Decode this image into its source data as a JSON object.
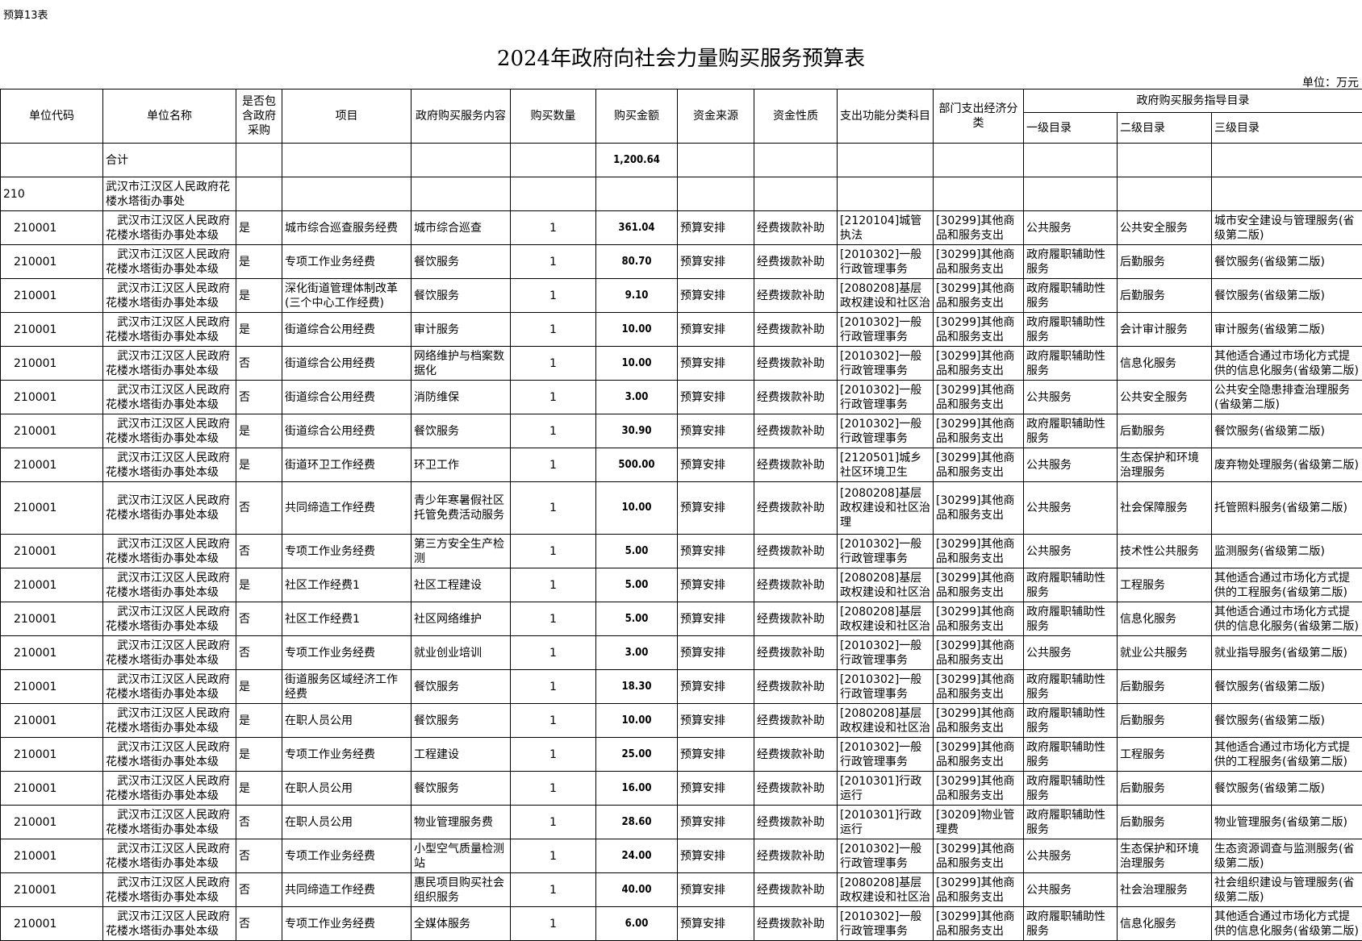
{
  "sheet_label": "预算13表",
  "title": "2024年政府向社会力量购买服务预算表",
  "unit": "单位：万元",
  "headers": {
    "code": "单位代码",
    "name": "单位名称",
    "gov_proc": "是否包含政府采购",
    "project": "项目",
    "content": "政府购买服务内容",
    "qty": "购买数量",
    "amount": "购买金额",
    "fund_source": "资金来源",
    "fund_nature": "资金性质",
    "func_class": "支出功能分类科目",
    "econ_class": "部门支出经济分类",
    "catalog": "政府购买服务指导目录",
    "level1": "一级目录",
    "level2": "二级目录",
    "level3": "三级目录"
  },
  "total_row": {
    "name": "合计",
    "amount": "1,200.64"
  },
  "unit_row": {
    "code": "210",
    "name": "武汉市江汉区人民政府花楼水塔街办事处"
  },
  "rows": [
    {
      "code": "210001",
      "name": "武汉市江汉区人民政府花楼水塔街办事处本级",
      "gov": "是",
      "project": "城市综合巡查服务经费",
      "content": "城市综合巡查",
      "qty": "1",
      "amount": "361.04",
      "source": "预算安排",
      "nature": "经费拨款补助",
      "func": "[2120104]城管执法",
      "econ": "[30299]其他商品和服务支出",
      "l1": "公共服务",
      "l2": "公共安全服务",
      "l3": "城市安全建设与管理服务(省级第二版)"
    },
    {
      "code": "210001",
      "name": "武汉市江汉区人民政府花楼水塔街办事处本级",
      "gov": "是",
      "project": "专项工作业务经费",
      "content": "餐饮服务",
      "qty": "1",
      "amount": "80.70",
      "source": "预算安排",
      "nature": "经费拨款补助",
      "func": "[2010302]一般行政管理事务",
      "econ": "[30299]其他商品和服务支出",
      "l1": "政府履职辅助性服务",
      "l2": "后勤服务",
      "l3": "餐饮服务(省级第二版)"
    },
    {
      "code": "210001",
      "name": "武汉市江汉区人民政府花楼水塔街办事处本级",
      "gov": "是",
      "project": "深化街道管理体制改革(三个中心工作经费)",
      "content": "餐饮服务",
      "qty": "1",
      "amount": "9.10",
      "source": "预算安排",
      "nature": "经费拨款补助",
      "func": "[2080208]基层政权建设和社区治理",
      "econ": "[30299]其他商品和服务支出",
      "l1": "政府履职辅助性服务",
      "l2": "后勤服务",
      "l3": "餐饮服务(省级第二版)"
    },
    {
      "code": "210001",
      "name": "武汉市江汉区人民政府花楼水塔街办事处本级",
      "gov": "是",
      "project": "街道综合公用经费",
      "content": "审计服务",
      "qty": "1",
      "amount": "10.00",
      "source": "预算安排",
      "nature": "经费拨款补助",
      "func": "[2010302]一般行政管理事务",
      "econ": "[30299]其他商品和服务支出",
      "l1": "政府履职辅助性服务",
      "l2": "会计审计服务",
      "l3": "审计服务(省级第二版)"
    },
    {
      "code": "210001",
      "name": "武汉市江汉区人民政府花楼水塔街办事处本级",
      "gov": "否",
      "project": "街道综合公用经费",
      "content": "网络维护与档案数据化",
      "qty": "1",
      "amount": "10.00",
      "source": "预算安排",
      "nature": "经费拨款补助",
      "func": "[2010302]一般行政管理事务",
      "econ": "[30299]其他商品和服务支出",
      "l1": "政府履职辅助性服务",
      "l2": "信息化服务",
      "l3": "其他适合通过市场化方式提供的信息化服务(省级第二版)"
    },
    {
      "code": "210001",
      "name": "武汉市江汉区人民政府花楼水塔街办事处本级",
      "gov": "否",
      "project": "街道综合公用经费",
      "content": "消防维保",
      "qty": "1",
      "amount": "3.00",
      "source": "预算安排",
      "nature": "经费拨款补助",
      "func": "[2010302]一般行政管理事务",
      "econ": "[30299]其他商品和服务支出",
      "l1": "公共服务",
      "l2": "公共安全服务",
      "l3": "公共安全隐患排查治理服务(省级第二版)"
    },
    {
      "code": "210001",
      "name": "武汉市江汉区人民政府花楼水塔街办事处本级",
      "gov": "是",
      "project": "街道综合公用经费",
      "content": "餐饮服务",
      "qty": "1",
      "amount": "30.90",
      "source": "预算安排",
      "nature": "经费拨款补助",
      "func": "[2010302]一般行政管理事务",
      "econ": "[30299]其他商品和服务支出",
      "l1": "政府履职辅助性服务",
      "l2": "后勤服务",
      "l3": "餐饮服务(省级第二版)"
    },
    {
      "code": "210001",
      "name": "武汉市江汉区人民政府花楼水塔街办事处本级",
      "gov": "是",
      "project": "街道环卫工作经费",
      "content": "环卫工作",
      "qty": "1",
      "amount": "500.00",
      "source": "预算安排",
      "nature": "经费拨款补助",
      "func": "[2120501]城乡社区环境卫生",
      "econ": "[30299]其他商品和服务支出",
      "l1": "公共服务",
      "l2": "生态保护和环境治理服务",
      "l3": "废弃物处理服务(省级第二版)"
    },
    {
      "code": "210001",
      "name": "武汉市江汉区人民政府花楼水塔街办事处本级",
      "gov": "否",
      "project": "共同缔造工作经费",
      "content": "青少年寒暑假社区托管免费活动服务",
      "qty": "1",
      "amount": "10.00",
      "source": "预算安排",
      "nature": "经费拨款补助",
      "func": "[2080208]基层政权建设和社区治理",
      "econ": "[30299]其他商品和服务支出",
      "l1": "公共服务",
      "l2": "社会保障服务",
      "l3": "托管照料服务(省级第二版)",
      "tall": true
    },
    {
      "code": "210001",
      "name": "武汉市江汉区人民政府花楼水塔街办事处本级",
      "gov": "否",
      "project": "专项工作业务经费",
      "content": "第三方安全生产检测",
      "qty": "1",
      "amount": "5.00",
      "source": "预算安排",
      "nature": "经费拨款补助",
      "func": "[2010302]一般行政管理事务",
      "econ": "[30299]其他商品和服务支出",
      "l1": "公共服务",
      "l2": "技术性公共服务",
      "l3": "监测服务(省级第二版)"
    },
    {
      "code": "210001",
      "name": "武汉市江汉区人民政府花楼水塔街办事处本级",
      "gov": "是",
      "project": "社区工作经费1",
      "content": "社区工程建设",
      "qty": "1",
      "amount": "5.00",
      "source": "预算安排",
      "nature": "经费拨款补助",
      "func": "[2080208]基层政权建设和社区治理",
      "econ": "[30299]其他商品和服务支出",
      "l1": "政府履职辅助性服务",
      "l2": "工程服务",
      "l3": "其他适合通过市场化方式提供的工程服务(省级第二版)"
    },
    {
      "code": "210001",
      "name": "武汉市江汉区人民政府花楼水塔街办事处本级",
      "gov": "否",
      "project": "社区工作经费1",
      "content": "社区网络维护",
      "qty": "1",
      "amount": "5.00",
      "source": "预算安排",
      "nature": "经费拨款补助",
      "func": "[2080208]基层政权建设和社区治理",
      "econ": "[30299]其他商品和服务支出",
      "l1": "政府履职辅助性服务",
      "l2": "信息化服务",
      "l3": "其他适合通过市场化方式提供的信息化服务(省级第二版)"
    },
    {
      "code": "210001",
      "name": "武汉市江汉区人民政府花楼水塔街办事处本级",
      "gov": "否",
      "project": "专项工作业务经费",
      "content": "就业创业培训",
      "qty": "1",
      "amount": "3.00",
      "source": "预算安排",
      "nature": "经费拨款补助",
      "func": "[2010302]一般行政管理事务",
      "econ": "[30299]其他商品和服务支出",
      "l1": "公共服务",
      "l2": "就业公共服务",
      "l3": "就业指导服务(省级第二版)"
    },
    {
      "code": "210001",
      "name": "武汉市江汉区人民政府花楼水塔街办事处本级",
      "gov": "是",
      "project": "街道服务区域经济工作经费",
      "content": "餐饮服务",
      "qty": "1",
      "amount": "18.30",
      "source": "预算安排",
      "nature": "经费拨款补助",
      "func": "[2010302]一般行政管理事务",
      "econ": "[30299]其他商品和服务支出",
      "l1": "政府履职辅助性服务",
      "l2": "后勤服务",
      "l3": "餐饮服务(省级第二版)"
    },
    {
      "code": "210001",
      "name": "武汉市江汉区人民政府花楼水塔街办事处本级",
      "gov": "是",
      "project": "在职人员公用",
      "content": "餐饮服务",
      "qty": "1",
      "amount": "10.00",
      "source": "预算安排",
      "nature": "经费拨款补助",
      "func": "[2080208]基层政权建设和社区治理",
      "econ": "[30299]其他商品和服务支出",
      "l1": "政府履职辅助性服务",
      "l2": "后勤服务",
      "l3": "餐饮服务(省级第二版)"
    },
    {
      "code": "210001",
      "name": "武汉市江汉区人民政府花楼水塔街办事处本级",
      "gov": "是",
      "project": "专项工作业务经费",
      "content": "工程建设",
      "qty": "1",
      "amount": "25.00",
      "source": "预算安排",
      "nature": "经费拨款补助",
      "func": "[2010302]一般行政管理事务",
      "econ": "[30299]其他商品和服务支出",
      "l1": "政府履职辅助性服务",
      "l2": "工程服务",
      "l3": "其他适合通过市场化方式提供的工程服务(省级第二版)"
    },
    {
      "code": "210001",
      "name": "武汉市江汉区人民政府花楼水塔街办事处本级",
      "gov": "是",
      "project": "在职人员公用",
      "content": "餐饮服务",
      "qty": "1",
      "amount": "16.00",
      "source": "预算安排",
      "nature": "经费拨款补助",
      "func": "[2010301]行政运行",
      "econ": "[30299]其他商品和服务支出",
      "l1": "政府履职辅助性服务",
      "l2": "后勤服务",
      "l3": "餐饮服务(省级第二版)"
    },
    {
      "code": "210001",
      "name": "武汉市江汉区人民政府花楼水塔街办事处本级",
      "gov": "否",
      "project": "在职人员公用",
      "content": "物业管理服务费",
      "qty": "1",
      "amount": "28.60",
      "source": "预算安排",
      "nature": "经费拨款补助",
      "func": "[2010301]行政运行",
      "econ": "[30209]物业管理费",
      "l1": "政府履职辅助性服务",
      "l2": "后勤服务",
      "l3": "物业管理服务(省级第二版)"
    },
    {
      "code": "210001",
      "name": "武汉市江汉区人民政府花楼水塔街办事处本级",
      "gov": "否",
      "project": "专项工作业务经费",
      "content": "小型空气质量检测站",
      "qty": "1",
      "amount": "24.00",
      "source": "预算安排",
      "nature": "经费拨款补助",
      "func": "[2010302]一般行政管理事务",
      "econ": "[30299]其他商品和服务支出",
      "l1": "公共服务",
      "l2": "生态保护和环境治理服务",
      "l3": "生态资源调查与监测服务(省级第二版)"
    },
    {
      "code": "210001",
      "name": "武汉市江汉区人民政府花楼水塔街办事处本级",
      "gov": "否",
      "project": "共同缔造工作经费",
      "content": "惠民项目购买社会组织服务",
      "qty": "1",
      "amount": "40.00",
      "source": "预算安排",
      "nature": "经费拨款补助",
      "func": "[2080208]基层政权建设和社区治理",
      "econ": "[30299]其他商品和服务支出",
      "l1": "公共服务",
      "l2": "社会治理服务",
      "l3": "社会组织建设与管理服务(省级第二版)"
    },
    {
      "code": "210001",
      "name": "武汉市江汉区人民政府花楼水塔街办事处本级",
      "gov": "否",
      "project": "专项工作业务经费",
      "content": "全媒体服务",
      "qty": "1",
      "amount": "6.00",
      "source": "预算安排",
      "nature": "经费拨款补助",
      "func": "[2010302]一般行政管理事务",
      "econ": "[30299]其他商品和服务支出",
      "l1": "政府履职辅助性服务",
      "l2": "信息化服务",
      "l3": "其他适合通过市场化方式提供的信息化服务(省级第二版)"
    }
  ]
}
